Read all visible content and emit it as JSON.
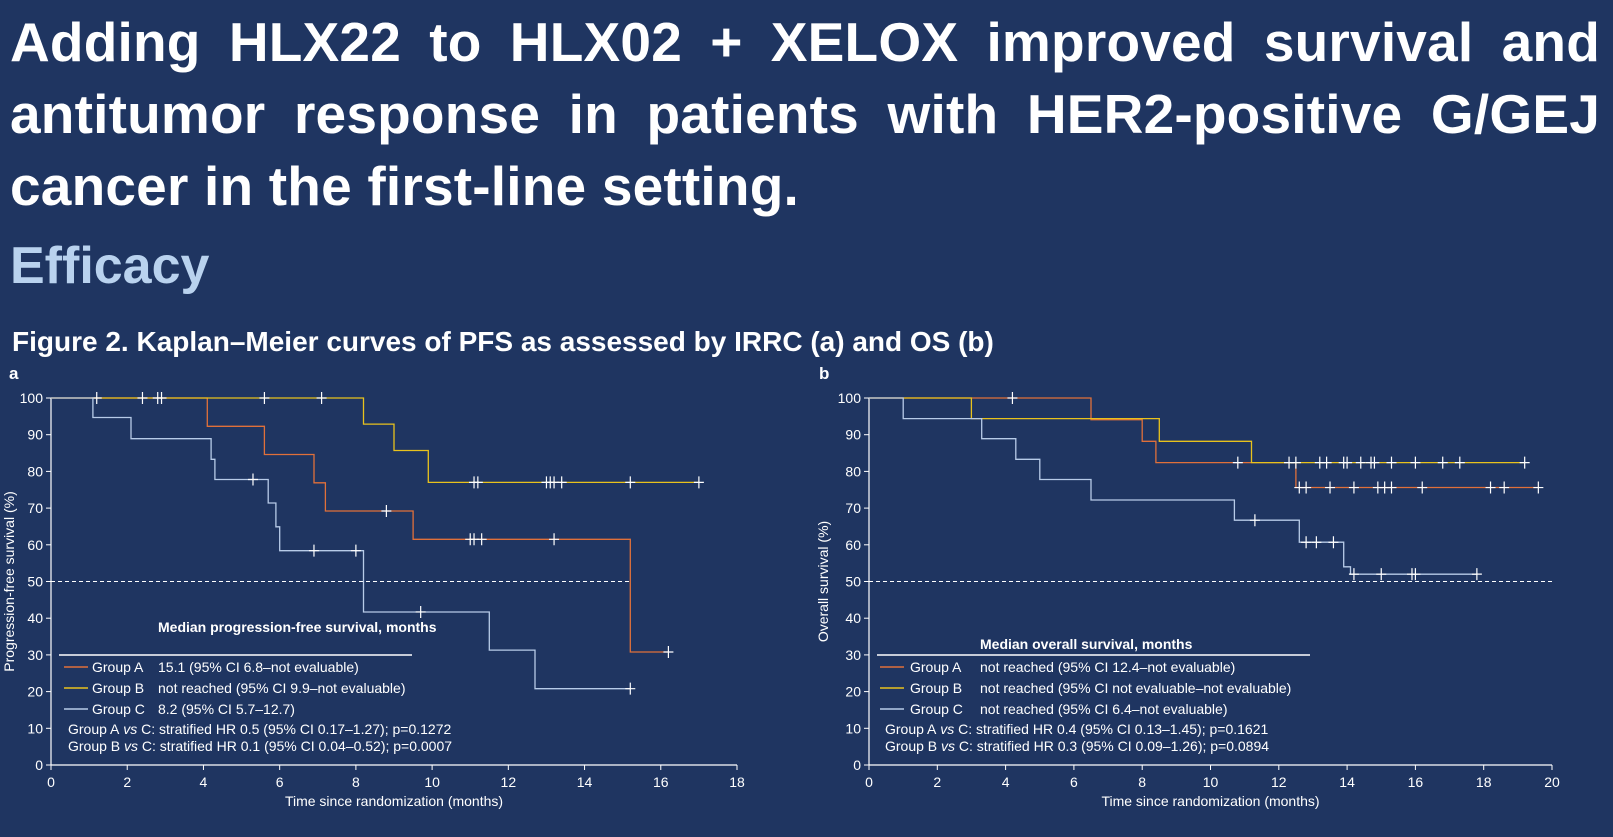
{
  "headline": "Adding HLX22 to HLX02 + XELOX improved survival and antitumor response in patients with HER2-positive G/GEJ cancer in the first-line setting.",
  "subheadline": "Efficacy",
  "figure_caption": "Figure 2. Kaplan–Meier curves of PFS as assessed by IRRC (a) and OS (b)",
  "colors": {
    "background": "#1f3561",
    "group_a": "#e0703a",
    "group_b": "#e8c21d",
    "group_c": "#b7cbe8",
    "headline": "#ffffff",
    "subheadline": "#b9d2ee"
  },
  "chart_data": [
    {
      "type": "line",
      "panel_label": "a",
      "title": "",
      "xlabel": "Time since randomization (months)",
      "ylabel": "Progression-free survival (%)",
      "xlim": [
        0,
        18
      ],
      "ylim": [
        0,
        100
      ],
      "xticks": [
        "0",
        "2",
        "4",
        "6",
        "8",
        "10",
        "12",
        "14",
        "16",
        "18"
      ],
      "yticks": [
        "0",
        "10",
        "20",
        "30",
        "40",
        "50",
        "60",
        "70",
        "80",
        "90",
        "100"
      ],
      "reference_line": 50,
      "legend_title": "Median progression-free survival, months",
      "legend": [
        {
          "name": "Group A",
          "desc": "15.1 (95% CI 6.8–not evaluable)"
        },
        {
          "name": "Group B",
          "desc": "not reached (95% CI 9.9–not evaluable)"
        },
        {
          "name": "Group C",
          "desc": "8.2 (95% CI 5.7–12.7)"
        }
      ],
      "stats": [
        "Group A vs C: stratified HR 0.5 (95% CI 0.17–1.27); p=0.1272",
        "Group B vs C: stratified HR 0.1 (95% CI 0.04–0.52); p=0.0007"
      ],
      "series": [
        {
          "name": "Group A",
          "x": [
            0,
            4.1,
            4.1,
            5.6,
            5.6,
            6.9,
            6.9,
            7.2,
            7.2,
            9.5,
            9.5,
            15.2,
            15.2,
            16.2
          ],
          "y": [
            100,
            100,
            92.3,
            92.3,
            84.6,
            84.6,
            76.9,
            76.9,
            69.2,
            69.2,
            61.5,
            61.5,
            30.8,
            30.8
          ],
          "censor_x": [
            8.8,
            11.0,
            11.1,
            11.3,
            13.2,
            16.2
          ],
          "censor_y": [
            69.2,
            61.5,
            61.5,
            61.5,
            61.5,
            30.8
          ]
        },
        {
          "name": "Group B",
          "x": [
            0,
            8.2,
            8.2,
            9.0,
            9.0,
            9.9,
            9.9,
            17.0
          ],
          "y": [
            100,
            100,
            92.9,
            92.9,
            85.7,
            85.7,
            77.0,
            77.0
          ],
          "censor_x": [
            1.2,
            2.4,
            2.8,
            2.9,
            5.6,
            7.1,
            11.1,
            11.2,
            13.0,
            13.1,
            13.2,
            13.4,
            15.2,
            17.0
          ],
          "censor_y": [
            100,
            100,
            100,
            100,
            100,
            100,
            77,
            77,
            77,
            77,
            77,
            77,
            77,
            77
          ]
        },
        {
          "name": "Group C",
          "x": [
            0,
            1.1,
            1.1,
            2.1,
            2.1,
            4.2,
            4.2,
            4.3,
            4.3,
            5.7,
            5.7,
            5.9,
            5.9,
            6.0,
            6.0,
            8.2,
            8.2,
            11.5,
            11.5,
            12.7,
            12.7,
            15.2
          ],
          "y": [
            100,
            100,
            94.7,
            94.7,
            88.9,
            88.9,
            83.3,
            83.3,
            77.8,
            77.8,
            71.4,
            71.4,
            64.9,
            64.9,
            58.4,
            58.4,
            41.7,
            41.7,
            31.3,
            31.3,
            20.8,
            20.8
          ],
          "censor_x": [
            5.3,
            6.9,
            8.0,
            9.7,
            15.2
          ],
          "censor_y": [
            77.8,
            58.4,
            58.4,
            41.7,
            20.8
          ]
        }
      ]
    },
    {
      "type": "line",
      "panel_label": "b",
      "title": "",
      "xlabel": "Time since randomization (months)",
      "ylabel": "Overall survival (%)",
      "xlim": [
        0,
        20
      ],
      "ylim": [
        0,
        100
      ],
      "xticks": [
        "0",
        "2",
        "4",
        "6",
        "8",
        "10",
        "12",
        "14",
        "16",
        "18",
        "20"
      ],
      "yticks": [
        "0",
        "10",
        "20",
        "30",
        "40",
        "50",
        "60",
        "70",
        "80",
        "90",
        "100"
      ],
      "reference_line": 50,
      "legend_title": "Median overall survival, months",
      "legend": [
        {
          "name": "Group A",
          "desc": "not reached (95% CI 12.4–not evaluable)"
        },
        {
          "name": "Group B",
          "desc": "not reached (95% CI not evaluable–not evaluable)"
        },
        {
          "name": "Group C",
          "desc": "not reached (95% CI 6.4–not evaluable)"
        }
      ],
      "stats": [
        "Group A vs C: stratified HR 0.4 (95% CI 0.13–1.45); p=0.1621",
        "Group B vs C: stratified HR 0.3 (95% CI 0.09–1.26); p=0.0894"
      ],
      "series": [
        {
          "name": "Group A",
          "x": [
            0,
            6.5,
            6.5,
            8.0,
            8.0,
            8.4,
            8.4,
            12.5,
            12.5,
            19.6
          ],
          "y": [
            100,
            100,
            94.1,
            94.1,
            88.2,
            88.2,
            82.4,
            82.4,
            75.6,
            75.6
          ],
          "censor_x": [
            4.2,
            12.6,
            12.8,
            13.5,
            14.2,
            14.9,
            15.1,
            15.3,
            16.2,
            18.2,
            18.6,
            19.6
          ],
          "censor_y": [
            100,
            75.6,
            75.6,
            75.6,
            75.6,
            75.6,
            75.6,
            75.6,
            75.6,
            75.6,
            75.6,
            75.6
          ],
          "dashed_from": 12.5
        },
        {
          "name": "Group B",
          "x": [
            0,
            3.0,
            3.0,
            8.5,
            8.5,
            11.2,
            11.2,
            19.2
          ],
          "y": [
            100,
            100,
            94.4,
            94.4,
            88.2,
            88.2,
            82.4,
            82.4
          ],
          "censor_x": [
            10.8,
            12.3,
            12.5,
            13.2,
            13.4,
            13.9,
            14.0,
            14.4,
            14.7,
            14.8,
            15.3,
            16.0,
            16.8,
            17.3,
            19.2
          ],
          "censor_y": [
            82.4,
            82.4,
            82.4,
            82.4,
            82.4,
            82.4,
            82.4,
            82.4,
            82.4,
            82.4,
            82.4,
            82.4,
            82.4,
            82.4,
            82.4
          ]
        },
        {
          "name": "Group C",
          "x": [
            0,
            1.0,
            1.0,
            3.3,
            3.3,
            4.3,
            4.3,
            5.0,
            5.0,
            6.5,
            6.5,
            10.7,
            10.7,
            12.6,
            12.6,
            13.9,
            13.9,
            14.1,
            14.1,
            17.8
          ],
          "y": [
            100,
            100,
            94.4,
            94.4,
            88.9,
            88.9,
            83.3,
            83.3,
            77.8,
            77.8,
            72.2,
            72.2,
            66.7,
            66.7,
            60.7,
            60.7,
            54.0,
            54.0,
            52.0,
            52.0
          ],
          "censor_x": [
            11.3,
            12.8,
            13.1,
            13.6,
            14.2,
            15.0,
            15.9,
            16.0,
            17.8
          ],
          "censor_y": [
            66.7,
            60.7,
            60.7,
            60.7,
            52,
            52,
            52,
            52,
            52
          ]
        }
      ]
    }
  ]
}
